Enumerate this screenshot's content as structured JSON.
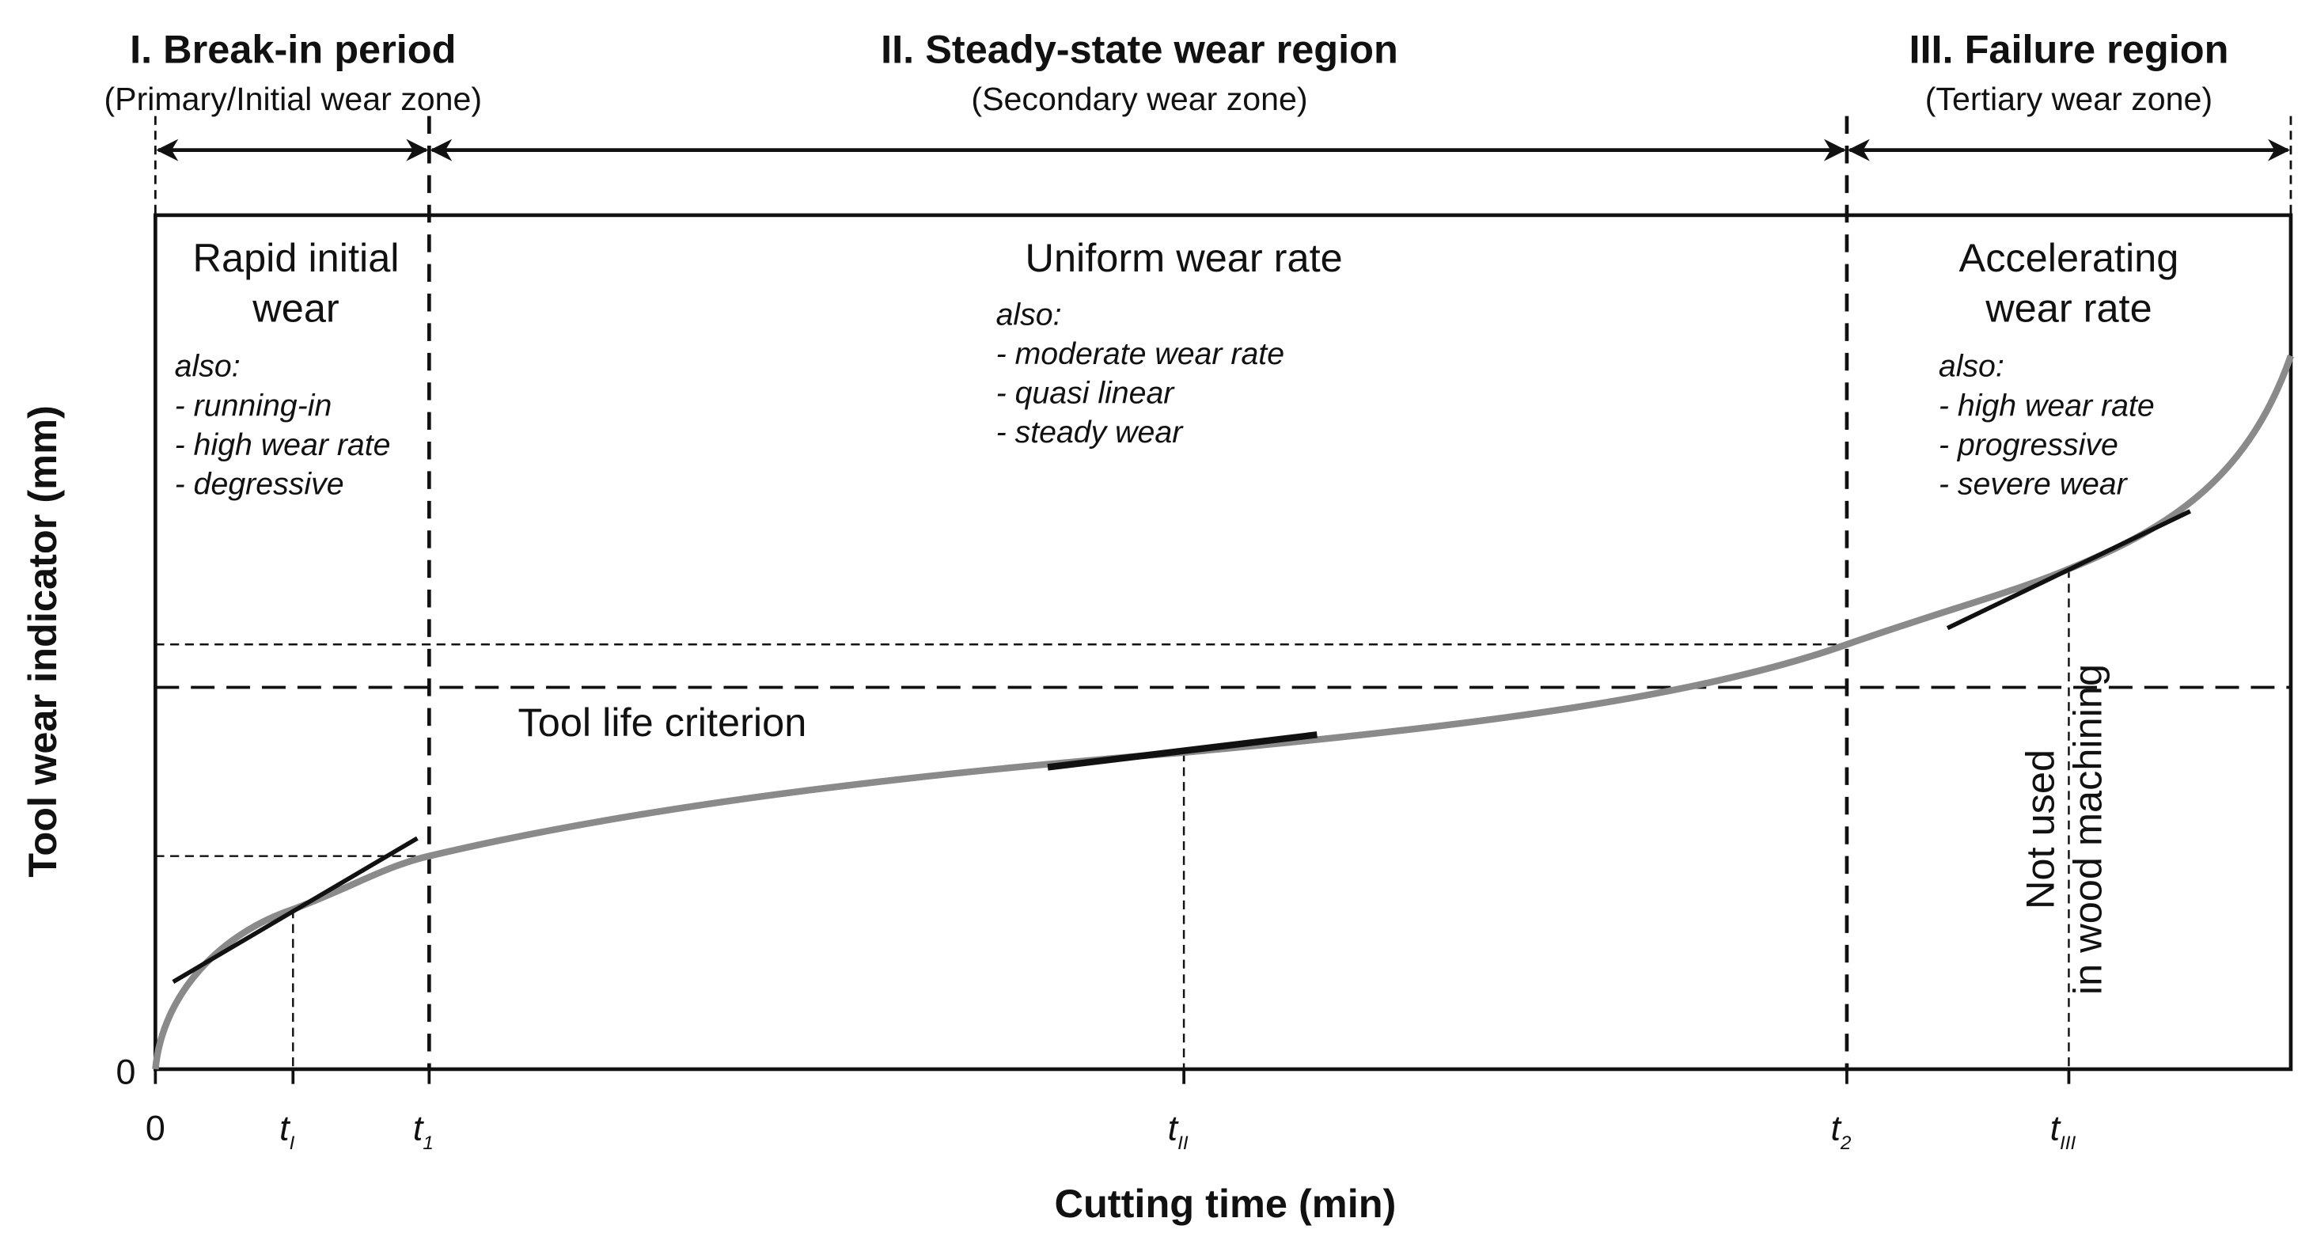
{
  "regions": [
    {
      "title": "I. Break-in period",
      "subtitle": "(Primary/Initial wear zone)",
      "heading_lines": [
        "Rapid initial",
        "wear"
      ],
      "note_lines": [
        "also:",
        "- running-in",
        "- high wear rate",
        "- degressive"
      ]
    },
    {
      "title": "II. Steady-state wear region",
      "subtitle": "(Secondary wear zone)",
      "heading_lines": [
        "Uniform wear rate"
      ],
      "note_lines": [
        "also:",
        "- moderate wear rate",
        "- quasi linear",
        "- steady wear"
      ]
    },
    {
      "title": "III. Failure region",
      "subtitle": "(Tertiary wear zone)",
      "heading_lines": [
        "Accelerating",
        "wear rate"
      ],
      "note_lines": [
        "also:",
        "- high wear rate",
        "- progressive",
        "- severe wear"
      ]
    }
  ],
  "y_axis": {
    "label": "Tool wear indicator (mm)",
    "origin": "0"
  },
  "x_axis": {
    "label": "Cutting time (min)",
    "origin": "0",
    "marks": [
      {
        "base": "t",
        "sub": "I"
      },
      {
        "base": "t",
        "sub": "1"
      },
      {
        "base": "t",
        "sub": "II"
      },
      {
        "base": "t",
        "sub": "2"
      },
      {
        "base": "t",
        "sub": "III"
      }
    ]
  },
  "criterion": "Tool life criterion",
  "annotation_lines": [
    "Not used",
    "in wood machining"
  ]
}
